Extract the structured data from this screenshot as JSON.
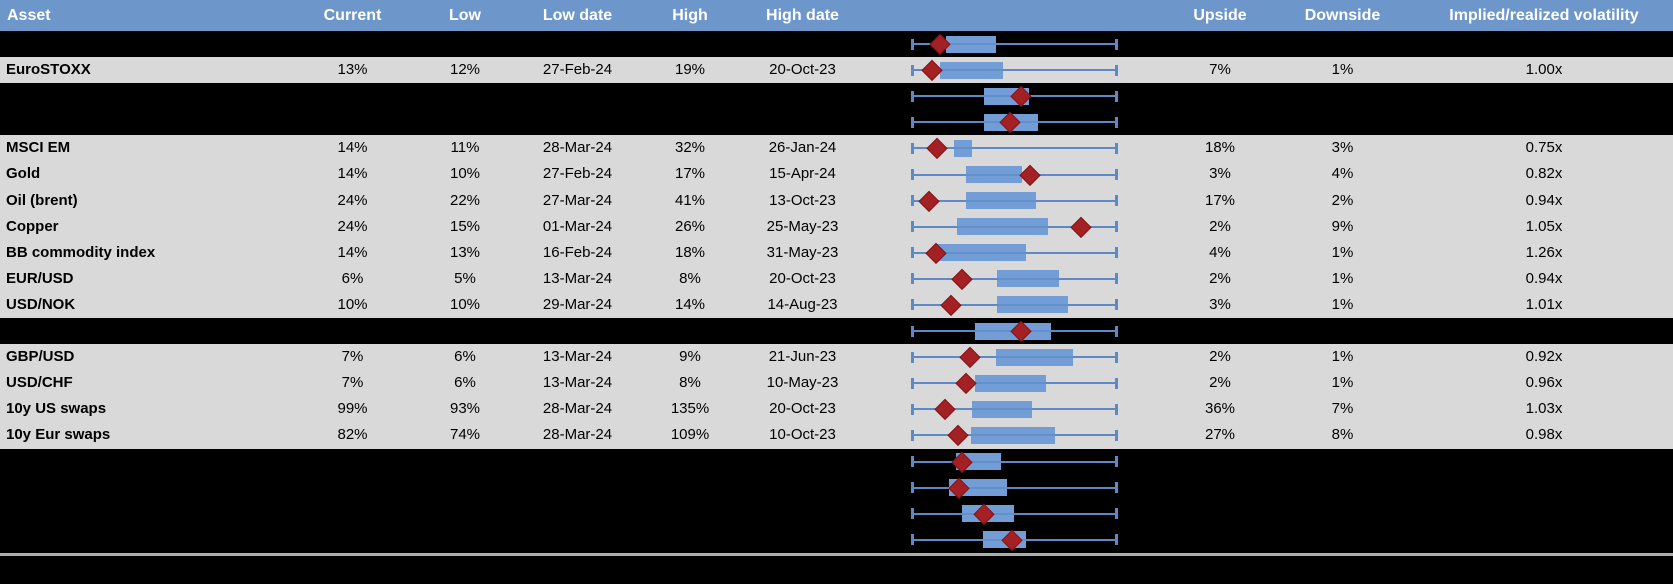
{
  "colors": {
    "header_bg": "#6d96cb",
    "header_text": "#ffffff",
    "row_gray": "#d9d9d9",
    "row_black": "#000000",
    "box_fill": "#729dd6",
    "box_median_line": "#6390c9",
    "whisker_line": "#5d89c7",
    "marker_fill": "#a32024",
    "marker_border": "#841417",
    "separator_line": "#adadad"
  },
  "header": {
    "labels": [
      "Asset",
      "Current",
      "Low",
      "Low date",
      "High",
      "High date",
      "",
      "Upside",
      "Downside",
      "Implied/realized volatility"
    ]
  },
  "chart_data": {
    "type": "table",
    "description": "Asset volatility range table with embedded horizontal box-whisker charts; red diamond = current level. Box/marker positions are relative (0-1) along each row's whisker span (no axis labels shown).",
    "columns": [
      "Asset",
      "Current",
      "Low",
      "Low date",
      "High",
      "High date",
      "Upside",
      "Downside",
      "Implied/realized volatility"
    ],
    "legend": "on-chart boxplots, no legend shown",
    "rows": [
      {
        "style": "chart",
        "asset": "",
        "boxplot": {
          "whisker_low": 0,
          "box_low": 0.166,
          "box_high": 0.411,
          "whisker_high": 1,
          "marker": 0.137
        }
      },
      {
        "style": "data",
        "asset": "EuroSTOXX",
        "current": "13%",
        "low": "12%",
        "low_date": "27-Feb-24",
        "high": "19%",
        "high_date": "20-Oct-23",
        "upside": "7%",
        "downside": "1%",
        "implied_realized_vol": "1.00x",
        "boxplot": {
          "whisker_low": 0,
          "box_low": 0.137,
          "box_high": 0.446,
          "whisker_high": 1,
          "marker": 0.098
        }
      },
      {
        "style": "chart",
        "asset": "",
        "boxplot": {
          "whisker_low": 0,
          "box_low": 0.349,
          "box_high": 0.573,
          "whisker_high": 1,
          "marker": 0.534
        }
      },
      {
        "style": "chart",
        "asset": "",
        "boxplot": {
          "whisker_low": 0,
          "box_low": 0.353,
          "box_high": 0.617,
          "whisker_high": 1,
          "marker": 0.479
        }
      },
      {
        "style": "data",
        "asset": "MSCI EM",
        "current": "14%",
        "low": "11%",
        "low_date": "28-Mar-24",
        "high": "32%",
        "high_date": "26-Jan-24",
        "upside": "18%",
        "downside": "3%",
        "implied_realized_vol": "0.75x",
        "boxplot": {
          "whisker_low": 0,
          "box_low": 0.207,
          "box_high": 0.293,
          "whisker_high": 1,
          "marker": 0.122
        }
      },
      {
        "style": "data",
        "asset": "Gold",
        "current": "14%",
        "low": "10%",
        "low_date": "27-Feb-24",
        "high": "17%",
        "high_date": "15-Apr-24",
        "upside": "3%",
        "downside": "4%",
        "implied_realized_vol": "0.82x",
        "boxplot": {
          "whisker_low": 0,
          "box_low": 0.261,
          "box_high": 0.538,
          "whisker_high": 1,
          "marker": 0.578
        }
      },
      {
        "style": "data",
        "asset": "Oil (brent)",
        "current": "24%",
        "low": "22%",
        "low_date": "27-Mar-24",
        "high": "41%",
        "high_date": "13-Oct-23",
        "upside": "17%",
        "downside": "2%",
        "implied_realized_vol": "0.94x",
        "boxplot": {
          "whisker_low": 0,
          "box_low": 0.264,
          "box_high": 0.606,
          "whisker_high": 1,
          "marker": 0.085
        }
      },
      {
        "style": "data",
        "asset": "Copper",
        "current": "24%",
        "low": "15%",
        "low_date": "01-Mar-24",
        "high": "26%",
        "high_date": "25-May-23",
        "upside": "2%",
        "downside": "9%",
        "implied_realized_vol": "1.05x",
        "boxplot": {
          "whisker_low": 0,
          "box_low": 0.218,
          "box_high": 0.663,
          "whisker_high": 1,
          "marker": 0.823
        }
      },
      {
        "style": "data",
        "asset": "BB commodity index",
        "current": "14%",
        "low": "13%",
        "low_date": "16-Feb-24",
        "high": "18%",
        "high_date": "31-May-23",
        "upside": "4%",
        "downside": "1%",
        "implied_realized_vol": "1.26x",
        "boxplot": {
          "whisker_low": 0,
          "box_low": 0.12,
          "box_high": 0.557,
          "whisker_high": 1,
          "marker": 0.119
        }
      },
      {
        "style": "data",
        "asset": "EUR/USD",
        "current": "6%",
        "low": "5%",
        "low_date": "13-Mar-24",
        "high": "8%",
        "high_date": "20-Oct-23",
        "upside": "2%",
        "downside": "1%",
        "implied_realized_vol": "0.94x",
        "boxplot": {
          "whisker_low": 0,
          "box_low": 0.415,
          "box_high": 0.717,
          "whisker_high": 1,
          "marker": 0.242
        }
      },
      {
        "style": "data",
        "asset": "USD/NOK",
        "current": "10%",
        "low": "10%",
        "low_date": "29-Mar-24",
        "high": "14%",
        "high_date": "14-Aug-23",
        "upside": "3%",
        "downside": "1%",
        "implied_realized_vol": "1.01x",
        "boxplot": {
          "whisker_low": 0,
          "box_low": 0.415,
          "box_high": 0.761,
          "whisker_high": 1,
          "marker": 0.191
        }
      },
      {
        "style": "chart",
        "asset": "",
        "boxplot": {
          "whisker_low": 0,
          "box_low": 0.305,
          "box_high": 0.679,
          "whisker_high": 1,
          "marker": 0.534
        }
      },
      {
        "style": "data",
        "asset": "GBP/USD",
        "current": "7%",
        "low": "6%",
        "low_date": "13-Mar-24",
        "high": "9%",
        "high_date": "21-Jun-23",
        "upside": "2%",
        "downside": "1%",
        "implied_realized_vol": "0.92x",
        "boxplot": {
          "whisker_low": 0,
          "box_low": 0.411,
          "box_high": 0.785,
          "whisker_high": 1,
          "marker": 0.283
        }
      },
      {
        "style": "data",
        "asset": "USD/CHF",
        "current": "7%",
        "low": "6%",
        "low_date": "13-Mar-24",
        "high": "8%",
        "high_date": "10-May-23",
        "upside": "2%",
        "downside": "1%",
        "implied_realized_vol": "0.96x",
        "boxplot": {
          "whisker_low": 0,
          "box_low": 0.309,
          "box_high": 0.652,
          "whisker_high": 1,
          "marker": 0.264
        }
      },
      {
        "style": "data",
        "asset": "10y US swaps",
        "current": "99%",
        "low": "93%",
        "low_date": "28-Mar-24",
        "high": "135%",
        "high_date": "20-Oct-23",
        "upside": "36%",
        "downside": "7%",
        "implied_realized_vol": "1.03x",
        "boxplot": {
          "whisker_low": 0,
          "box_low": 0.293,
          "box_high": 0.583,
          "whisker_high": 1,
          "marker": 0.163
        }
      },
      {
        "style": "data",
        "asset": "10y Eur swaps",
        "current": "82%",
        "low": "74%",
        "low_date": "28-Mar-24",
        "high": "109%",
        "high_date": "10-Oct-23",
        "upside": "27%",
        "downside": "8%",
        "implied_realized_vol": "0.98x",
        "boxplot": {
          "whisker_low": 0,
          "box_low": 0.288,
          "box_high": 0.699,
          "whisker_high": 1,
          "marker": 0.223
        }
      },
      {
        "style": "chart",
        "asset": "",
        "boxplot": {
          "whisker_low": 0,
          "box_low": 0.215,
          "box_high": 0.435,
          "whisker_high": 1,
          "marker": 0.242
        }
      },
      {
        "style": "chart",
        "asset": "",
        "boxplot": {
          "whisker_low": 0,
          "box_low": 0.182,
          "box_high": 0.462,
          "whisker_high": 1,
          "marker": 0.228
        }
      },
      {
        "style": "chart",
        "asset": "",
        "boxplot": {
          "whisker_low": 0,
          "box_low": 0.242,
          "box_high": 0.5,
          "whisker_high": 1,
          "marker": 0.35
        }
      },
      {
        "style": "chart",
        "asset": "",
        "boxplot": {
          "whisker_low": 0,
          "box_low": 0.345,
          "box_high": 0.554,
          "whisker_high": 1,
          "marker": 0.489
        }
      }
    ]
  }
}
